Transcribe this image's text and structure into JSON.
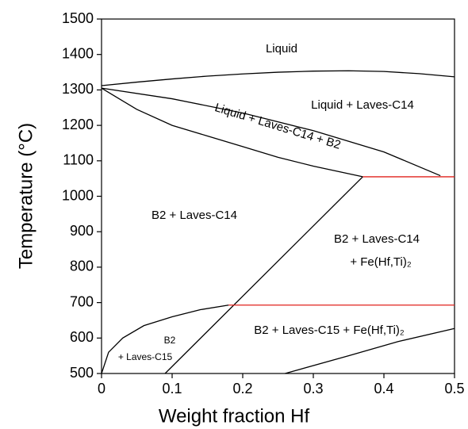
{
  "chart_data": {
    "type": "line",
    "x_label": "Weight fraction Hf",
    "y_label": "Temperature (°C)",
    "xlim": [
      0,
      0.5
    ],
    "ylim": [
      500,
      1500
    ],
    "xticks": [
      0,
      0.1,
      0.2,
      0.3,
      0.4,
      0.5
    ],
    "yticks": [
      500,
      600,
      700,
      800,
      900,
      1000,
      1100,
      1200,
      1300,
      1400,
      1500
    ],
    "series": [
      {
        "color": "#000000",
        "x": [
          0,
          0.05,
          0.1,
          0.15,
          0.2,
          0.25,
          0.3,
          0.35,
          0.4,
          0.45,
          0.5
        ],
        "values": [
          1312,
          1322,
          1331,
          1339,
          1345,
          1350,
          1353,
          1354,
          1352,
          1346,
          1337
        ]
      },
      {
        "color": "#000000",
        "x": [
          0,
          0.1,
          0.2,
          0.3,
          0.4,
          0.48
        ],
        "values": [
          1305,
          1275,
          1235,
          1185,
          1125,
          1058
        ]
      },
      {
        "color": "#000000",
        "x": [
          0,
          0.05,
          0.1,
          0.15,
          0.2,
          0.25,
          0.3,
          0.37
        ],
        "values": [
          1305,
          1245,
          1200,
          1170,
          1140,
          1110,
          1085,
          1055
        ]
      },
      {
        "color": "#000000",
        "x": [
          0.09,
          0.37
        ],
        "values": [
          500,
          1055
        ]
      },
      {
        "color": "#000000",
        "x": [
          0,
          0.01,
          0.03,
          0.06,
          0.1,
          0.14,
          0.18
        ],
        "values": [
          500,
          560,
          600,
          635,
          660,
          680,
          693
        ]
      },
      {
        "color": "#000000",
        "x": [
          0.26,
          0.35,
          0.42,
          0.5
        ],
        "values": [
          500,
          550,
          590,
          627
        ]
      },
      {
        "color": "#e0201b",
        "x": [
          0.37,
          0.5
        ],
        "values": [
          1055,
          1055
        ]
      },
      {
        "color": "#e0201b",
        "x": [
          0.18,
          0.5
        ],
        "values": [
          693,
          693
        ]
      }
    ],
    "annotations": [
      "Liquid",
      "Liquid + Laves-C14",
      "Liquid + Laves-C14 + B2",
      "B2 + Laves-C14",
      "B2 + Laves-C14",
      "+ Fe(Hf,Ti)₂",
      "B2 + Laves-C15 + Fe(Hf,Ti)₂",
      "B2",
      "+ Laves-C15"
    ]
  }
}
